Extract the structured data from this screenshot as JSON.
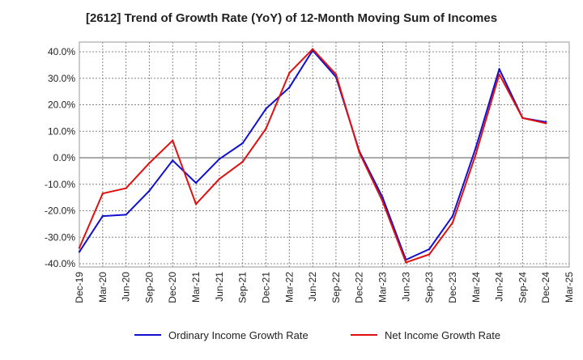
{
  "chart_data": {
    "type": "line",
    "title": "[2612]  Trend of Growth Rate (YoY) of 12-Month Moving Sum of Incomes",
    "xlabel": "",
    "ylabel": "",
    "ylim": [
      -40,
      40
    ],
    "yticks": [
      "40.0%",
      "30.0%",
      "20.0%",
      "10.0%",
      "0.0%",
      "-10.0%",
      "-20.0%",
      "-30.0%",
      "-40.0%"
    ],
    "categories": [
      "Dec-19",
      "Mar-20",
      "Jun-20",
      "Sep-20",
      "Dec-20",
      "Mar-21",
      "Jun-21",
      "Sep-21",
      "Dec-21",
      "Mar-22",
      "Jun-22",
      "Sep-22",
      "Dec-22",
      "Mar-23",
      "Jun-23",
      "Sep-23",
      "Dec-23",
      "Mar-24",
      "Jun-24",
      "Sep-24",
      "Dec-24",
      "Mar-25"
    ],
    "grid": true,
    "legend_position": "bottom",
    "series": [
      {
        "name": "Ordinary Income Growth Rate",
        "color": "#1010d0",
        "values": [
          -35.5,
          -22.0,
          -21.5,
          -12.5,
          -1.0,
          -9.5,
          -0.5,
          5.5,
          18.5,
          26.5,
          40.5,
          30.5,
          2.5,
          -15.0,
          -38.5,
          -34.5,
          -22.0,
          4.0,
          33.5,
          15.0,
          13.5,
          null
        ]
      },
      {
        "name": "Net Income Growth Rate",
        "color": "#e01010",
        "values": [
          -34.0,
          -13.5,
          -11.5,
          -2.0,
          6.5,
          -17.5,
          -8.0,
          -1.5,
          11.0,
          32.0,
          41.0,
          31.5,
          2.0,
          -16.5,
          -39.5,
          -36.5,
          -24.5,
          1.5,
          31.5,
          15.0,
          13.0,
          null
        ]
      }
    ]
  }
}
